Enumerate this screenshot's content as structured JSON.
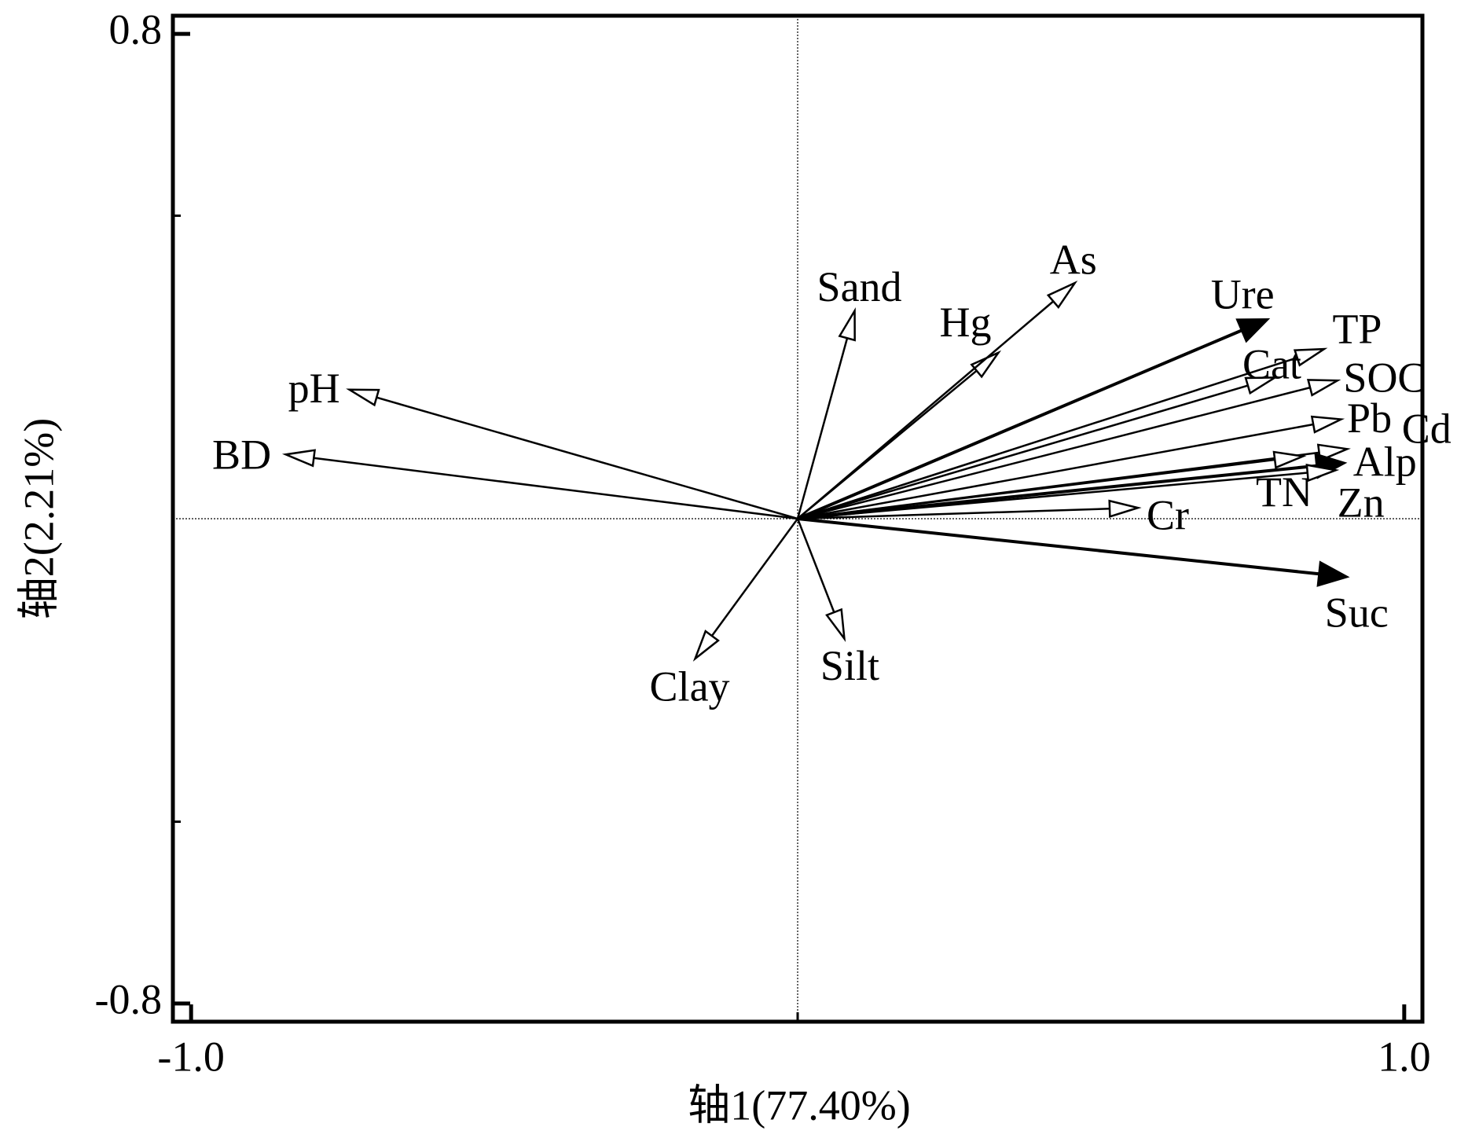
{
  "chart_data": {
    "type": "biplot",
    "xlabel": "轴1(77.40%)",
    "ylabel": "轴2(2.21%)",
    "xlim": [
      -1.03,
      1.03
    ],
    "ylim": [
      -0.83,
      0.83
    ],
    "xticks": [
      {
        "value": -1.0,
        "label": "-1.0"
      },
      {
        "value": 1.0,
        "label": "1.0"
      }
    ],
    "yticks": [
      0.8,
      -0.8
    ],
    "xminor": [
      0
    ],
    "yminor": [
      0.5,
      -0.5
    ],
    "zero_lines": true,
    "color": "#000000",
    "vectors": [
      {
        "name": "pH",
        "x": -0.739,
        "y": 0.213,
        "filled": false
      },
      {
        "name": "BD",
        "x": -0.844,
        "y": 0.106,
        "filled": false
      },
      {
        "name": "Sand",
        "x": 0.094,
        "y": 0.343,
        "filled": false
      },
      {
        "name": "Hg",
        "x": 0.331,
        "y": 0.274,
        "filled": false
      },
      {
        "name": "As",
        "x": 0.457,
        "y": 0.389,
        "filled": false
      },
      {
        "name": "Ure",
        "x": 0.775,
        "y": 0.329,
        "filled": true
      },
      {
        "name": "TP",
        "x": 0.868,
        "y": 0.28,
        "filled": false
      },
      {
        "name": "Cat",
        "x": 0.787,
        "y": 0.233,
        "filled": false
      },
      {
        "name": "SOC",
        "x": 0.89,
        "y": 0.228,
        "filled": false
      },
      {
        "name": "Pb",
        "x": 0.896,
        "y": 0.164,
        "filled": false
      },
      {
        "name": "Cd",
        "x": 0.906,
        "y": 0.115,
        "filled": false
      },
      {
        "name": "Alp",
        "x": 0.902,
        "y": 0.092,
        "filled": true
      },
      {
        "name": "TN",
        "x": 0.833,
        "y": 0.103,
        "filled": false
      },
      {
        "name": "Zn",
        "x": 0.887,
        "y": 0.08,
        "filled": false
      },
      {
        "name": "Cr",
        "x": 0.561,
        "y": 0.018,
        "filled": false
      },
      {
        "name": "Suc",
        "x": 0.906,
        "y": -0.096,
        "filled": true
      },
      {
        "name": "Clay",
        "x": -0.169,
        "y": -0.231,
        "filled": false
      },
      {
        "name": "Silt",
        "x": 0.077,
        "y": -0.198,
        "filled": false
      }
    ]
  }
}
